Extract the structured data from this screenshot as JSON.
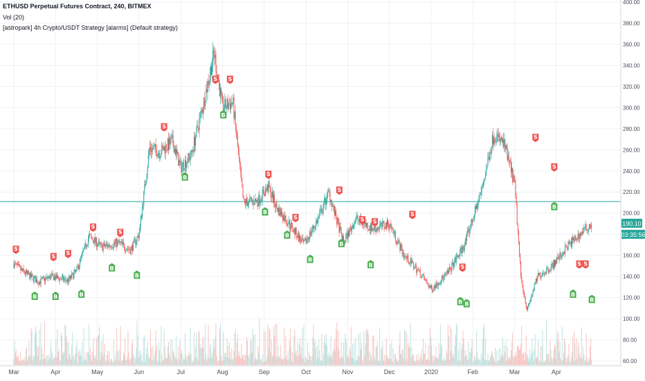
{
  "header": {
    "symbol_line": "ETHUSD Perpetual Futures Contract, 240, BITMEX",
    "volume_indicator": "Vol (20)",
    "strategy_indicator": "[astropark] 4h Crypto/USDT Strategy [alarms] (Default strategy)"
  },
  "colors": {
    "up": "#26a69a",
    "down": "#ef5350",
    "buy": "#4caf50",
    "sell": "#ef5350",
    "grid": "#eef1f6",
    "hline": "#26a69a",
    "volume_up": "#bfe3df",
    "volume_down": "#f7c4c2"
  },
  "price_labels": {
    "last_price": "190.10",
    "countdown": "03:35:56"
  },
  "chart_data": {
    "type": "candlestick",
    "ylim": [
      60,
      400
    ],
    "y_ticks": [
      60,
      80,
      100,
      120,
      140,
      160,
      180,
      200,
      220,
      240,
      260,
      280,
      300,
      320,
      340,
      360,
      380,
      400
    ],
    "y_tick_labels": [
      "60.00",
      "80.00",
      "100.00",
      "120.00",
      "140.00",
      "160.00",
      "180.00",
      "200.00",
      "220.00",
      "240.00",
      "260.00",
      "280.00",
      "300.00",
      "320.00",
      "340.00",
      "360.00",
      "380.00",
      "400.00"
    ],
    "x_ticks": [
      "Mar",
      "Apr",
      "May",
      "Jun",
      "Jul",
      "Aug",
      "Sep",
      "Oct",
      "Nov",
      "Dec",
      "2020",
      "Feb",
      "Mar",
      "Apr"
    ],
    "horizontal_line": 211,
    "price_path": [
      {
        "month": 0.0,
        "price": 152
      },
      {
        "month": 0.2,
        "price": 145
      },
      {
        "month": 0.6,
        "price": 135
      },
      {
        "month": 0.9,
        "price": 140
      },
      {
        "month": 1.3,
        "price": 136
      },
      {
        "month": 1.5,
        "price": 145
      },
      {
        "month": 1.8,
        "price": 178
      },
      {
        "month": 2.1,
        "price": 168
      },
      {
        "month": 2.5,
        "price": 172
      },
      {
        "month": 2.8,
        "price": 165
      },
      {
        "month": 3.0,
        "price": 180
      },
      {
        "month": 3.25,
        "price": 262
      },
      {
        "month": 3.5,
        "price": 258
      },
      {
        "month": 3.8,
        "price": 268
      },
      {
        "month": 4.0,
        "price": 243
      },
      {
        "month": 4.25,
        "price": 255
      },
      {
        "month": 4.55,
        "price": 305
      },
      {
        "month": 4.8,
        "price": 352
      },
      {
        "month": 5.0,
        "price": 300
      },
      {
        "month": 5.25,
        "price": 305
      },
      {
        "month": 5.5,
        "price": 210
      },
      {
        "month": 5.85,
        "price": 212
      },
      {
        "month": 6.1,
        "price": 225
      },
      {
        "month": 6.3,
        "price": 205
      },
      {
        "month": 6.6,
        "price": 190
      },
      {
        "month": 6.95,
        "price": 170
      },
      {
        "month": 7.3,
        "price": 195
      },
      {
        "month": 7.55,
        "price": 220
      },
      {
        "month": 7.7,
        "price": 198
      },
      {
        "month": 7.9,
        "price": 172
      },
      {
        "month": 8.2,
        "price": 195
      },
      {
        "month": 8.6,
        "price": 185
      },
      {
        "month": 9.0,
        "price": 190
      },
      {
        "month": 9.35,
        "price": 160
      },
      {
        "month": 9.7,
        "price": 145
      },
      {
        "month": 10.0,
        "price": 128
      },
      {
        "month": 10.4,
        "price": 143
      },
      {
        "month": 10.8,
        "price": 170
      },
      {
        "month": 11.2,
        "price": 220
      },
      {
        "month": 11.5,
        "price": 275
      },
      {
        "month": 11.75,
        "price": 265
      },
      {
        "month": 12.0,
        "price": 228
      },
      {
        "month": 12.15,
        "price": 140
      },
      {
        "month": 12.3,
        "price": 108
      },
      {
        "month": 12.55,
        "price": 140
      },
      {
        "month": 12.9,
        "price": 150
      },
      {
        "month": 13.3,
        "price": 170
      },
      {
        "month": 13.7,
        "price": 185
      },
      {
        "month": 13.85,
        "price": 190
      }
    ],
    "signals": [
      {
        "label": "S",
        "month": 0.05,
        "price": 162
      },
      {
        "label": "B",
        "month": 0.5,
        "price": 125
      },
      {
        "label": "S",
        "month": 0.95,
        "price": 155
      },
      {
        "label": "B",
        "month": 1.0,
        "price": 125
      },
      {
        "label": "S",
        "month": 1.3,
        "price": 158
      },
      {
        "label": "B",
        "month": 1.62,
        "price": 127
      },
      {
        "label": "S",
        "month": 1.9,
        "price": 183
      },
      {
        "label": "B",
        "month": 2.35,
        "price": 152
      },
      {
        "label": "S",
        "month": 2.55,
        "price": 178
      },
      {
        "label": "B",
        "month": 2.95,
        "price": 145
      },
      {
        "label": "S",
        "month": 3.6,
        "price": 278
      },
      {
        "label": "B",
        "month": 4.1,
        "price": 238
      },
      {
        "label": "S",
        "month": 4.83,
        "price": 323
      },
      {
        "label": "B",
        "month": 5.02,
        "price": 297
      },
      {
        "label": "S",
        "month": 5.18,
        "price": 323
      },
      {
        "label": "S",
        "month": 6.1,
        "price": 233
      },
      {
        "label": "B",
        "month": 6.02,
        "price": 205
      },
      {
        "label": "B",
        "month": 6.55,
        "price": 183
      },
      {
        "label": "S",
        "month": 6.75,
        "price": 192
      },
      {
        "label": "B",
        "month": 7.1,
        "price": 160
      },
      {
        "label": "S",
        "month": 7.8,
        "price": 218
      },
      {
        "label": "B",
        "month": 7.85,
        "price": 175
      },
      {
        "label": "S",
        "month": 8.35,
        "price": 190
      },
      {
        "label": "B",
        "month": 8.55,
        "price": 155
      },
      {
        "label": "S",
        "month": 8.65,
        "price": 188
      },
      {
        "label": "S",
        "month": 9.55,
        "price": 195
      },
      {
        "label": "S",
        "month": 10.75,
        "price": 145
      },
      {
        "label": "B",
        "month": 10.7,
        "price": 120
      },
      {
        "label": "B",
        "month": 10.85,
        "price": 118
      },
      {
        "label": "S",
        "month": 12.5,
        "price": 268
      },
      {
        "label": "S",
        "month": 12.95,
        "price": 240
      },
      {
        "label": "B",
        "month": 12.95,
        "price": 210
      },
      {
        "label": "B",
        "month": 13.4,
        "price": 127
      },
      {
        "label": "S",
        "month": 13.55,
        "price": 148
      },
      {
        "label": "S",
        "month": 13.7,
        "price": 148
      },
      {
        "label": "B",
        "month": 13.85,
        "price": 122
      }
    ]
  }
}
